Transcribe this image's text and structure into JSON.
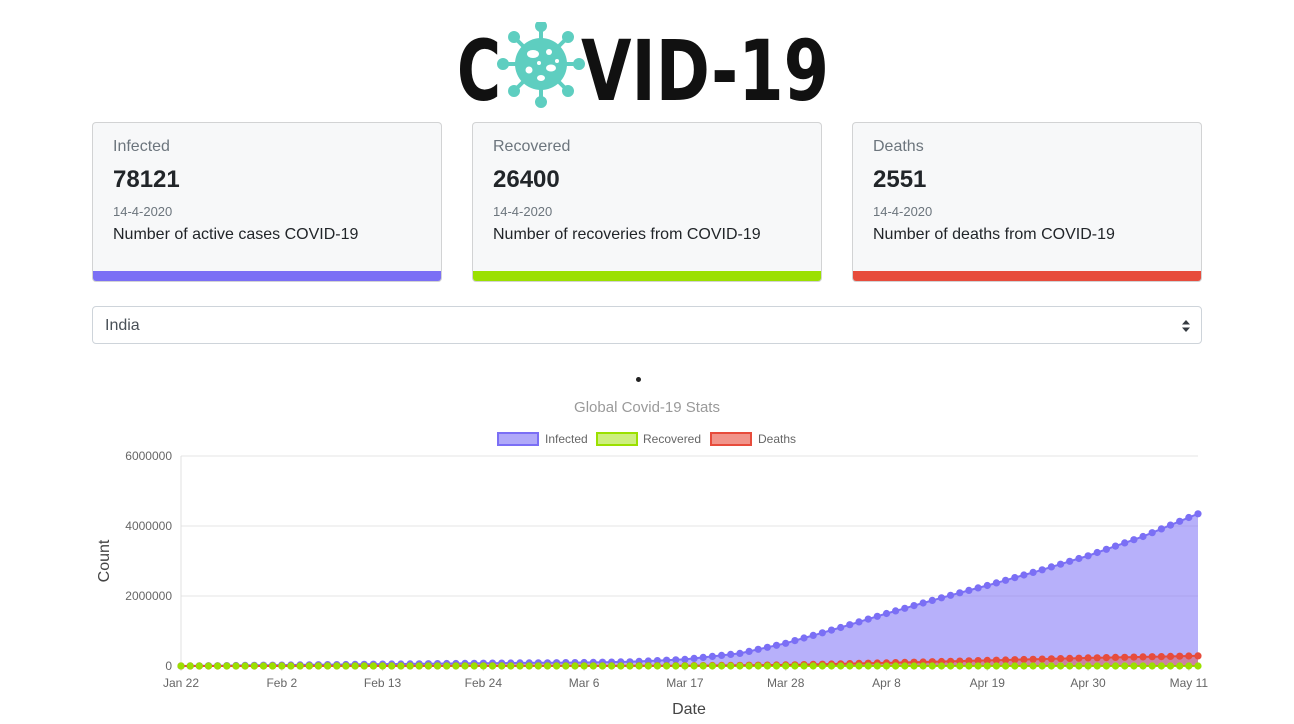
{
  "app": {
    "logo_text": "COVID-19",
    "colors": {
      "infected": "#7b6ff5",
      "recovered": "#9be000",
      "deaths": "#e74c3c"
    }
  },
  "cards": [
    {
      "title": "Infected",
      "value": "78121",
      "date": "14-4-2020",
      "description": "Number of active cases COVID-19"
    },
    {
      "title": "Recovered",
      "value": "26400",
      "date": "14-4-2020",
      "description": "Number of recoveries from COVID-19"
    },
    {
      "title": "Deaths",
      "value": "2551",
      "date": "14-4-2020",
      "description": "Number of deaths from COVID-19"
    }
  ],
  "country_select": {
    "selected": "India",
    "icon": "select-caret-icon"
  },
  "chart_data": {
    "type": "area",
    "title": "Global Covid-19 Stats",
    "xlabel": "Date",
    "ylabel": "Count",
    "ylim": [
      0,
      6000000
    ],
    "yticks": [
      "6000000",
      "4000000",
      "2000000",
      "0"
    ],
    "xticks": [
      "Jan 22",
      "Feb 2",
      "Feb 13",
      "Feb 24",
      "Mar 6",
      "Mar 17",
      "Mar 28",
      "Apr 8",
      "Apr 19",
      "Apr 30",
      "May 11"
    ],
    "x_start": "Jan 22",
    "x_end": "May 12",
    "grid": true,
    "legend_position": "top",
    "series": [
      {
        "name": "Infected",
        "anchors": [
          {
            "x": "Jan 22",
            "y": 0
          },
          {
            "x": "Feb 24",
            "y": 80000
          },
          {
            "x": "Mar 6",
            "y": 100000
          },
          {
            "x": "Mar 11",
            "y": 120000
          },
          {
            "x": "Mar 17",
            "y": 190000
          },
          {
            "x": "Mar 23",
            "y": 360000
          },
          {
            "x": "Mar 28",
            "y": 650000
          },
          {
            "x": "Apr 3",
            "y": 1100000
          },
          {
            "x": "Apr 8",
            "y": 1500000
          },
          {
            "x": "Apr 14",
            "y": 1950000
          },
          {
            "x": "Apr 19",
            "y": 2300000
          },
          {
            "x": "Apr 25",
            "y": 2750000
          },
          {
            "x": "Apr 30",
            "y": 3150000
          },
          {
            "x": "May 6",
            "y": 3700000
          },
          {
            "x": "May 12",
            "y": 4350000
          }
        ]
      },
      {
        "name": "Recovered",
        "anchors": [
          {
            "x": "Jan 22",
            "y": 0
          },
          {
            "x": "May 12",
            "y": 0
          }
        ]
      },
      {
        "name": "Deaths",
        "anchors": [
          {
            "x": "Jan 22",
            "y": 0
          },
          {
            "x": "Mar 17",
            "y": 8000
          },
          {
            "x": "Mar 28",
            "y": 30000
          },
          {
            "x": "Apr 8",
            "y": 90000
          },
          {
            "x": "Apr 19",
            "y": 160000
          },
          {
            "x": "Apr 30",
            "y": 230000
          },
          {
            "x": "May 12",
            "y": 290000
          }
        ]
      }
    ]
  }
}
